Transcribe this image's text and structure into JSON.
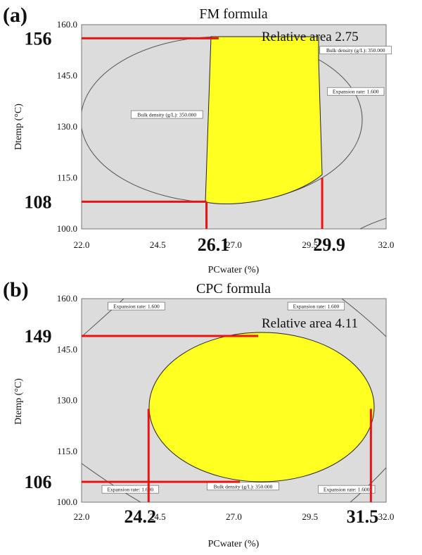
{
  "chart_data": [
    {
      "type": "contour",
      "panel_letter": "(a)",
      "title": "FM formula",
      "xlabel": "PCwater (%)",
      "ylabel": "Dtemp (°C)",
      "xlim": [
        22.0,
        32.0
      ],
      "ylim": [
        100.0,
        160.0
      ],
      "x_ticks": [
        "22.0",
        "24.5",
        "27.0",
        "29.5",
        "32.0"
      ],
      "y_ticks": [
        "100.0",
        "115.0",
        "130.0",
        "145.0",
        "160.0"
      ],
      "relative_area_label": "Relative area 2.75",
      "contour_labels": [
        {
          "text": "Bulk density (g/L): 350.000",
          "x": 24.8,
          "y": 133.5
        },
        {
          "text": "Bulk density (g/L): 350.000",
          "x": 31.0,
          "y": 152.4
        },
        {
          "text": "Expansion rate: 1.600",
          "x": 31.0,
          "y": 140.3
        }
      ],
      "highlights": [
        {
          "text": "156",
          "value": 156,
          "axis": "y",
          "x_end": 26.5
        },
        {
          "text": "108",
          "value": 108,
          "axis": "y",
          "x_end": 26.1
        },
        {
          "text": "26.1",
          "value": 26.1,
          "axis": "x",
          "y_end": 108
        },
        {
          "text": "29.9",
          "value": 29.9,
          "axis": "x",
          "y_end": 115
        }
      ]
    },
    {
      "type": "contour",
      "panel_letter": "(b)",
      "title": "CPC formula",
      "xlabel": "PCwater (%)",
      "ylabel": "Dtemp (°C)",
      "xlim": [
        22.0,
        32.0
      ],
      "ylim": [
        100.0,
        160.0
      ],
      "x_ticks": [
        "22.0",
        "24.5",
        "27.0",
        "29.5",
        "32.0"
      ],
      "y_ticks": [
        "100.0",
        "115.0",
        "130.0",
        "145.0",
        "160.0"
      ],
      "relative_area_label": "Relative area 4.11",
      "contour_labels": [
        {
          "text": "Expansion rate: 1.600",
          "x": 23.8,
          "y": 157.7
        },
        {
          "text": "Expansion rate: 1.600",
          "x": 29.7,
          "y": 157.7
        },
        {
          "text": "Expansion rate: 1.600",
          "x": 23.6,
          "y": 103.7
        },
        {
          "text": "Bulk density (g/L): 350.000",
          "x": 27.3,
          "y": 104.6
        },
        {
          "text": "Expansion rate: 1.600",
          "x": 30.7,
          "y": 103.7
        }
      ],
      "highlights": [
        {
          "text": "149",
          "value": 149,
          "axis": "y",
          "x_end": 27.8
        },
        {
          "text": "106",
          "value": 106,
          "axis": "y",
          "x_end": 27.2
        },
        {
          "text": "24.2",
          "value": 24.2,
          "axis": "x",
          "y_end": 127.5
        },
        {
          "text": "31.5",
          "value": 31.5,
          "axis": "x",
          "y_end": 127.5
        }
      ]
    }
  ],
  "colors": {
    "plot_bg": "#dcdcdc",
    "feasible_region": "#ffff22",
    "highlight_line": "#ee1111",
    "contour": "#555555"
  }
}
